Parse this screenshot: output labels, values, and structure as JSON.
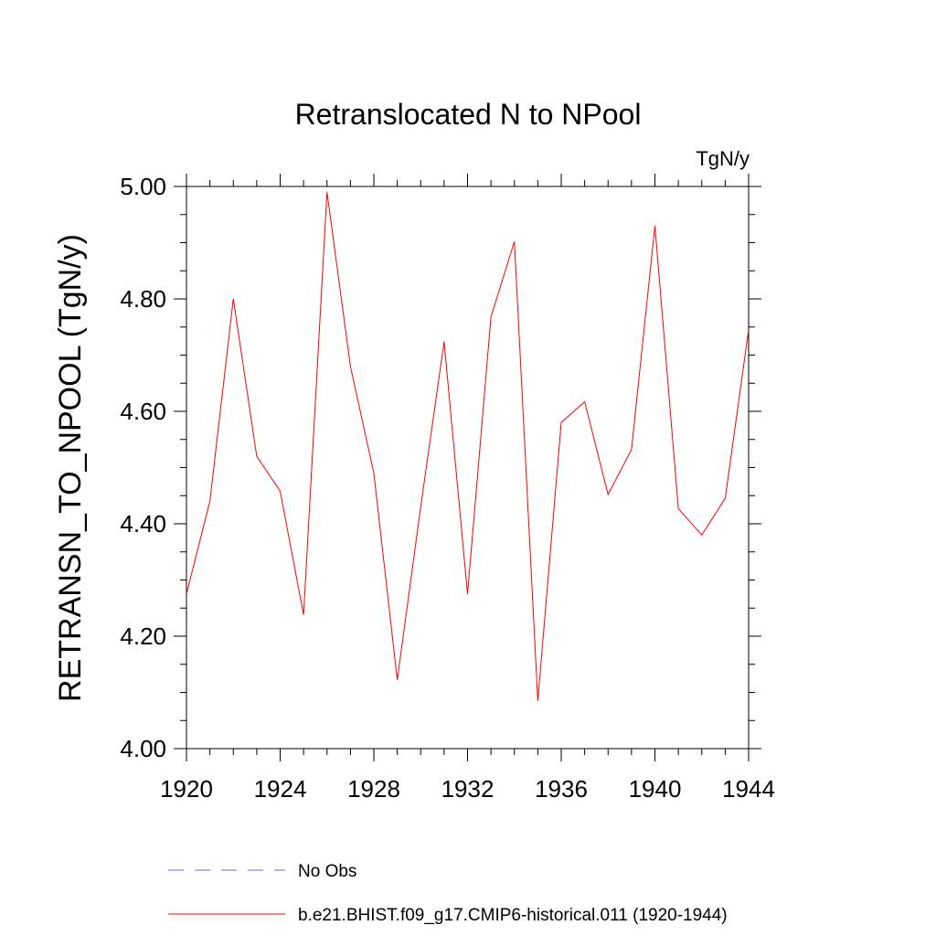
{
  "chart_data": {
    "type": "line",
    "title": "Retranslocated N to NPool",
    "units": "TgN/y",
    "ylabel": "RETRANSN_TO_NPOOL  (TgN/y)",
    "xlabel": "",
    "xlim": [
      1920,
      1944
    ],
    "ylim": [
      4.0,
      5.0
    ],
    "xticks": [
      1920,
      1924,
      1928,
      1932,
      1936,
      1940,
      1944
    ],
    "yticks": [
      "4.00",
      "4.20",
      "4.40",
      "4.60",
      "4.80",
      "5.00"
    ],
    "grid": false,
    "legend_position": "bottom",
    "series": [
      {
        "name": "b.e21.BHIST.f09_g17.CMIP6-historical.011 (1920-1944)",
        "color": "#ff0000",
        "style": "solid",
        "x": [
          1920,
          1921,
          1922,
          1923,
          1924,
          1925,
          1926,
          1927,
          1928,
          1929,
          1930,
          1931,
          1932,
          1933,
          1934,
          1935,
          1936,
          1937,
          1938,
          1939,
          1940,
          1941,
          1942,
          1943,
          1944
        ],
        "y": [
          4.275,
          4.44,
          4.8,
          4.52,
          4.458,
          4.238,
          4.99,
          4.68,
          4.49,
          4.122,
          4.43,
          4.724,
          4.275,
          4.768,
          4.902,
          4.085,
          4.58,
          4.617,
          4.452,
          4.532,
          4.93,
          4.427,
          4.38,
          4.445,
          4.745
        ]
      }
    ],
    "legend": [
      {
        "label": "No Obs",
        "color": "#6666cc",
        "style": "dashed"
      },
      {
        "label": "b.e21.BHIST.f09_g17.CMIP6-historical.011 (1920-1944)",
        "color": "#ff0000",
        "style": "solid"
      }
    ]
  }
}
